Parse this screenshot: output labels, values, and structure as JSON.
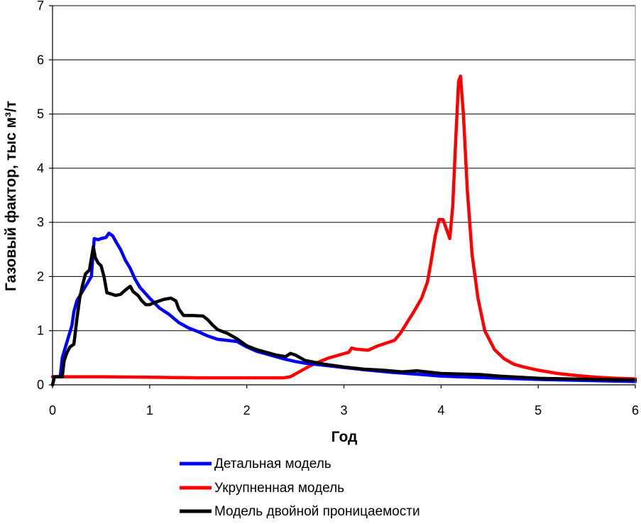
{
  "chart_data": {
    "type": "line",
    "title": "",
    "xlabel": "Год",
    "ylabel": "Газовый фактор, тыс м³/т",
    "xlim": [
      0,
      6
    ],
    "ylim": [
      0,
      7
    ],
    "xticks": [
      0,
      1,
      2,
      3,
      4,
      5,
      6
    ],
    "yticks": [
      0,
      1,
      2,
      3,
      4,
      5,
      6,
      7
    ],
    "grid": "horizontal",
    "legend_position": "bottom",
    "series": [
      {
        "name": "Детальная модель",
        "color": "#0000ff",
        "points": [
          [
            0,
            0
          ],
          [
            0.02,
            0.15
          ],
          [
            0.08,
            0.15
          ],
          [
            0.1,
            0.5
          ],
          [
            0.15,
            0.8
          ],
          [
            0.2,
            1.1
          ],
          [
            0.22,
            1.35
          ],
          [
            0.25,
            1.55
          ],
          [
            0.3,
            1.7
          ],
          [
            0.35,
            1.85
          ],
          [
            0.4,
            2.0
          ],
          [
            0.43,
            2.7
          ],
          [
            0.47,
            2.68
          ],
          [
            0.5,
            2.7
          ],
          [
            0.55,
            2.72
          ],
          [
            0.58,
            2.8
          ],
          [
            0.62,
            2.75
          ],
          [
            0.66,
            2.62
          ],
          [
            0.7,
            2.5
          ],
          [
            0.75,
            2.3
          ],
          [
            0.8,
            2.15
          ],
          [
            0.85,
            1.95
          ],
          [
            0.9,
            1.8
          ],
          [
            1.0,
            1.6
          ],
          [
            1.1,
            1.42
          ],
          [
            1.2,
            1.3
          ],
          [
            1.3,
            1.15
          ],
          [
            1.4,
            1.05
          ],
          [
            1.5,
            0.98
          ],
          [
            1.6,
            0.9
          ],
          [
            1.7,
            0.84
          ],
          [
            1.8,
            0.82
          ],
          [
            1.9,
            0.8
          ],
          [
            2.0,
            0.7
          ],
          [
            2.1,
            0.62
          ],
          [
            2.2,
            0.57
          ],
          [
            2.3,
            0.52
          ],
          [
            2.4,
            0.47
          ],
          [
            2.5,
            0.43
          ],
          [
            2.6,
            0.4
          ],
          [
            2.8,
            0.36
          ],
          [
            3.0,
            0.32
          ],
          [
            3.2,
            0.28
          ],
          [
            3.5,
            0.23
          ],
          [
            3.8,
            0.19
          ],
          [
            4.0,
            0.16
          ],
          [
            4.5,
            0.13
          ],
          [
            5.0,
            0.1
          ],
          [
            5.5,
            0.08
          ],
          [
            6.0,
            0.06
          ]
        ]
      },
      {
        "name": "Укрупненная модель",
        "color": "#ff0000",
        "points": [
          [
            0,
            0.15
          ],
          [
            0.5,
            0.15
          ],
          [
            1.0,
            0.14
          ],
          [
            1.5,
            0.13
          ],
          [
            2.0,
            0.13
          ],
          [
            2.38,
            0.13
          ],
          [
            2.45,
            0.15
          ],
          [
            2.55,
            0.25
          ],
          [
            2.65,
            0.35
          ],
          [
            2.75,
            0.43
          ],
          [
            2.85,
            0.5
          ],
          [
            2.95,
            0.55
          ],
          [
            3.05,
            0.6
          ],
          [
            3.08,
            0.68
          ],
          [
            3.12,
            0.66
          ],
          [
            3.25,
            0.64
          ],
          [
            3.35,
            0.72
          ],
          [
            3.45,
            0.78
          ],
          [
            3.52,
            0.82
          ],
          [
            3.58,
            0.95
          ],
          [
            3.65,
            1.15
          ],
          [
            3.72,
            1.35
          ],
          [
            3.8,
            1.6
          ],
          [
            3.86,
            1.9
          ],
          [
            3.9,
            2.3
          ],
          [
            3.94,
            2.75
          ],
          [
            3.98,
            3.05
          ],
          [
            4.02,
            3.05
          ],
          [
            4.05,
            2.9
          ],
          [
            4.09,
            2.7
          ],
          [
            4.12,
            3.3
          ],
          [
            4.15,
            4.5
          ],
          [
            4.18,
            5.6
          ],
          [
            4.2,
            5.7
          ],
          [
            4.23,
            5.0
          ],
          [
            4.27,
            3.6
          ],
          [
            4.32,
            2.4
          ],
          [
            4.38,
            1.6
          ],
          [
            4.45,
            1.0
          ],
          [
            4.55,
            0.65
          ],
          [
            4.65,
            0.48
          ],
          [
            4.75,
            0.38
          ],
          [
            4.85,
            0.33
          ],
          [
            5.0,
            0.27
          ],
          [
            5.2,
            0.21
          ],
          [
            5.4,
            0.17
          ],
          [
            5.6,
            0.14
          ],
          [
            5.8,
            0.12
          ],
          [
            6.0,
            0.11
          ]
        ]
      },
      {
        "name": "Модель двойной проницаемости",
        "color": "#000000",
        "points": [
          [
            0,
            0
          ],
          [
            0.02,
            0.15
          ],
          [
            0.1,
            0.15
          ],
          [
            0.12,
            0.45
          ],
          [
            0.15,
            0.6
          ],
          [
            0.18,
            0.7
          ],
          [
            0.22,
            0.75
          ],
          [
            0.25,
            1.2
          ],
          [
            0.28,
            1.6
          ],
          [
            0.31,
            1.85
          ],
          [
            0.34,
            2.05
          ],
          [
            0.38,
            2.12
          ],
          [
            0.42,
            2.55
          ],
          [
            0.44,
            2.35
          ],
          [
            0.47,
            2.25
          ],
          [
            0.5,
            2.2
          ],
          [
            0.53,
            2.0
          ],
          [
            0.56,
            1.7
          ],
          [
            0.6,
            1.68
          ],
          [
            0.65,
            1.65
          ],
          [
            0.7,
            1.67
          ],
          [
            0.75,
            1.75
          ],
          [
            0.8,
            1.82
          ],
          [
            0.83,
            1.72
          ],
          [
            0.88,
            1.65
          ],
          [
            0.92,
            1.55
          ],
          [
            0.96,
            1.48
          ],
          [
            1.0,
            1.48
          ],
          [
            1.05,
            1.52
          ],
          [
            1.1,
            1.55
          ],
          [
            1.15,
            1.58
          ],
          [
            1.22,
            1.6
          ],
          [
            1.27,
            1.55
          ],
          [
            1.3,
            1.4
          ],
          [
            1.35,
            1.28
          ],
          [
            1.45,
            1.28
          ],
          [
            1.55,
            1.27
          ],
          [
            1.6,
            1.2
          ],
          [
            1.65,
            1.1
          ],
          [
            1.7,
            1.02
          ],
          [
            1.8,
            0.95
          ],
          [
            1.9,
            0.85
          ],
          [
            2.0,
            0.72
          ],
          [
            2.1,
            0.65
          ],
          [
            2.2,
            0.6
          ],
          [
            2.3,
            0.55
          ],
          [
            2.4,
            0.52
          ],
          [
            2.45,
            0.58
          ],
          [
            2.5,
            0.55
          ],
          [
            2.6,
            0.45
          ],
          [
            2.8,
            0.38
          ],
          [
            3.0,
            0.33
          ],
          [
            3.2,
            0.29
          ],
          [
            3.4,
            0.27
          ],
          [
            3.6,
            0.24
          ],
          [
            3.75,
            0.26
          ],
          [
            3.9,
            0.23
          ],
          [
            4.0,
            0.21
          ],
          [
            4.2,
            0.2
          ],
          [
            4.4,
            0.19
          ],
          [
            4.6,
            0.16
          ],
          [
            4.8,
            0.14
          ],
          [
            5.0,
            0.12
          ],
          [
            5.3,
            0.11
          ],
          [
            5.6,
            0.1
          ],
          [
            6.0,
            0.09
          ]
        ]
      }
    ]
  }
}
